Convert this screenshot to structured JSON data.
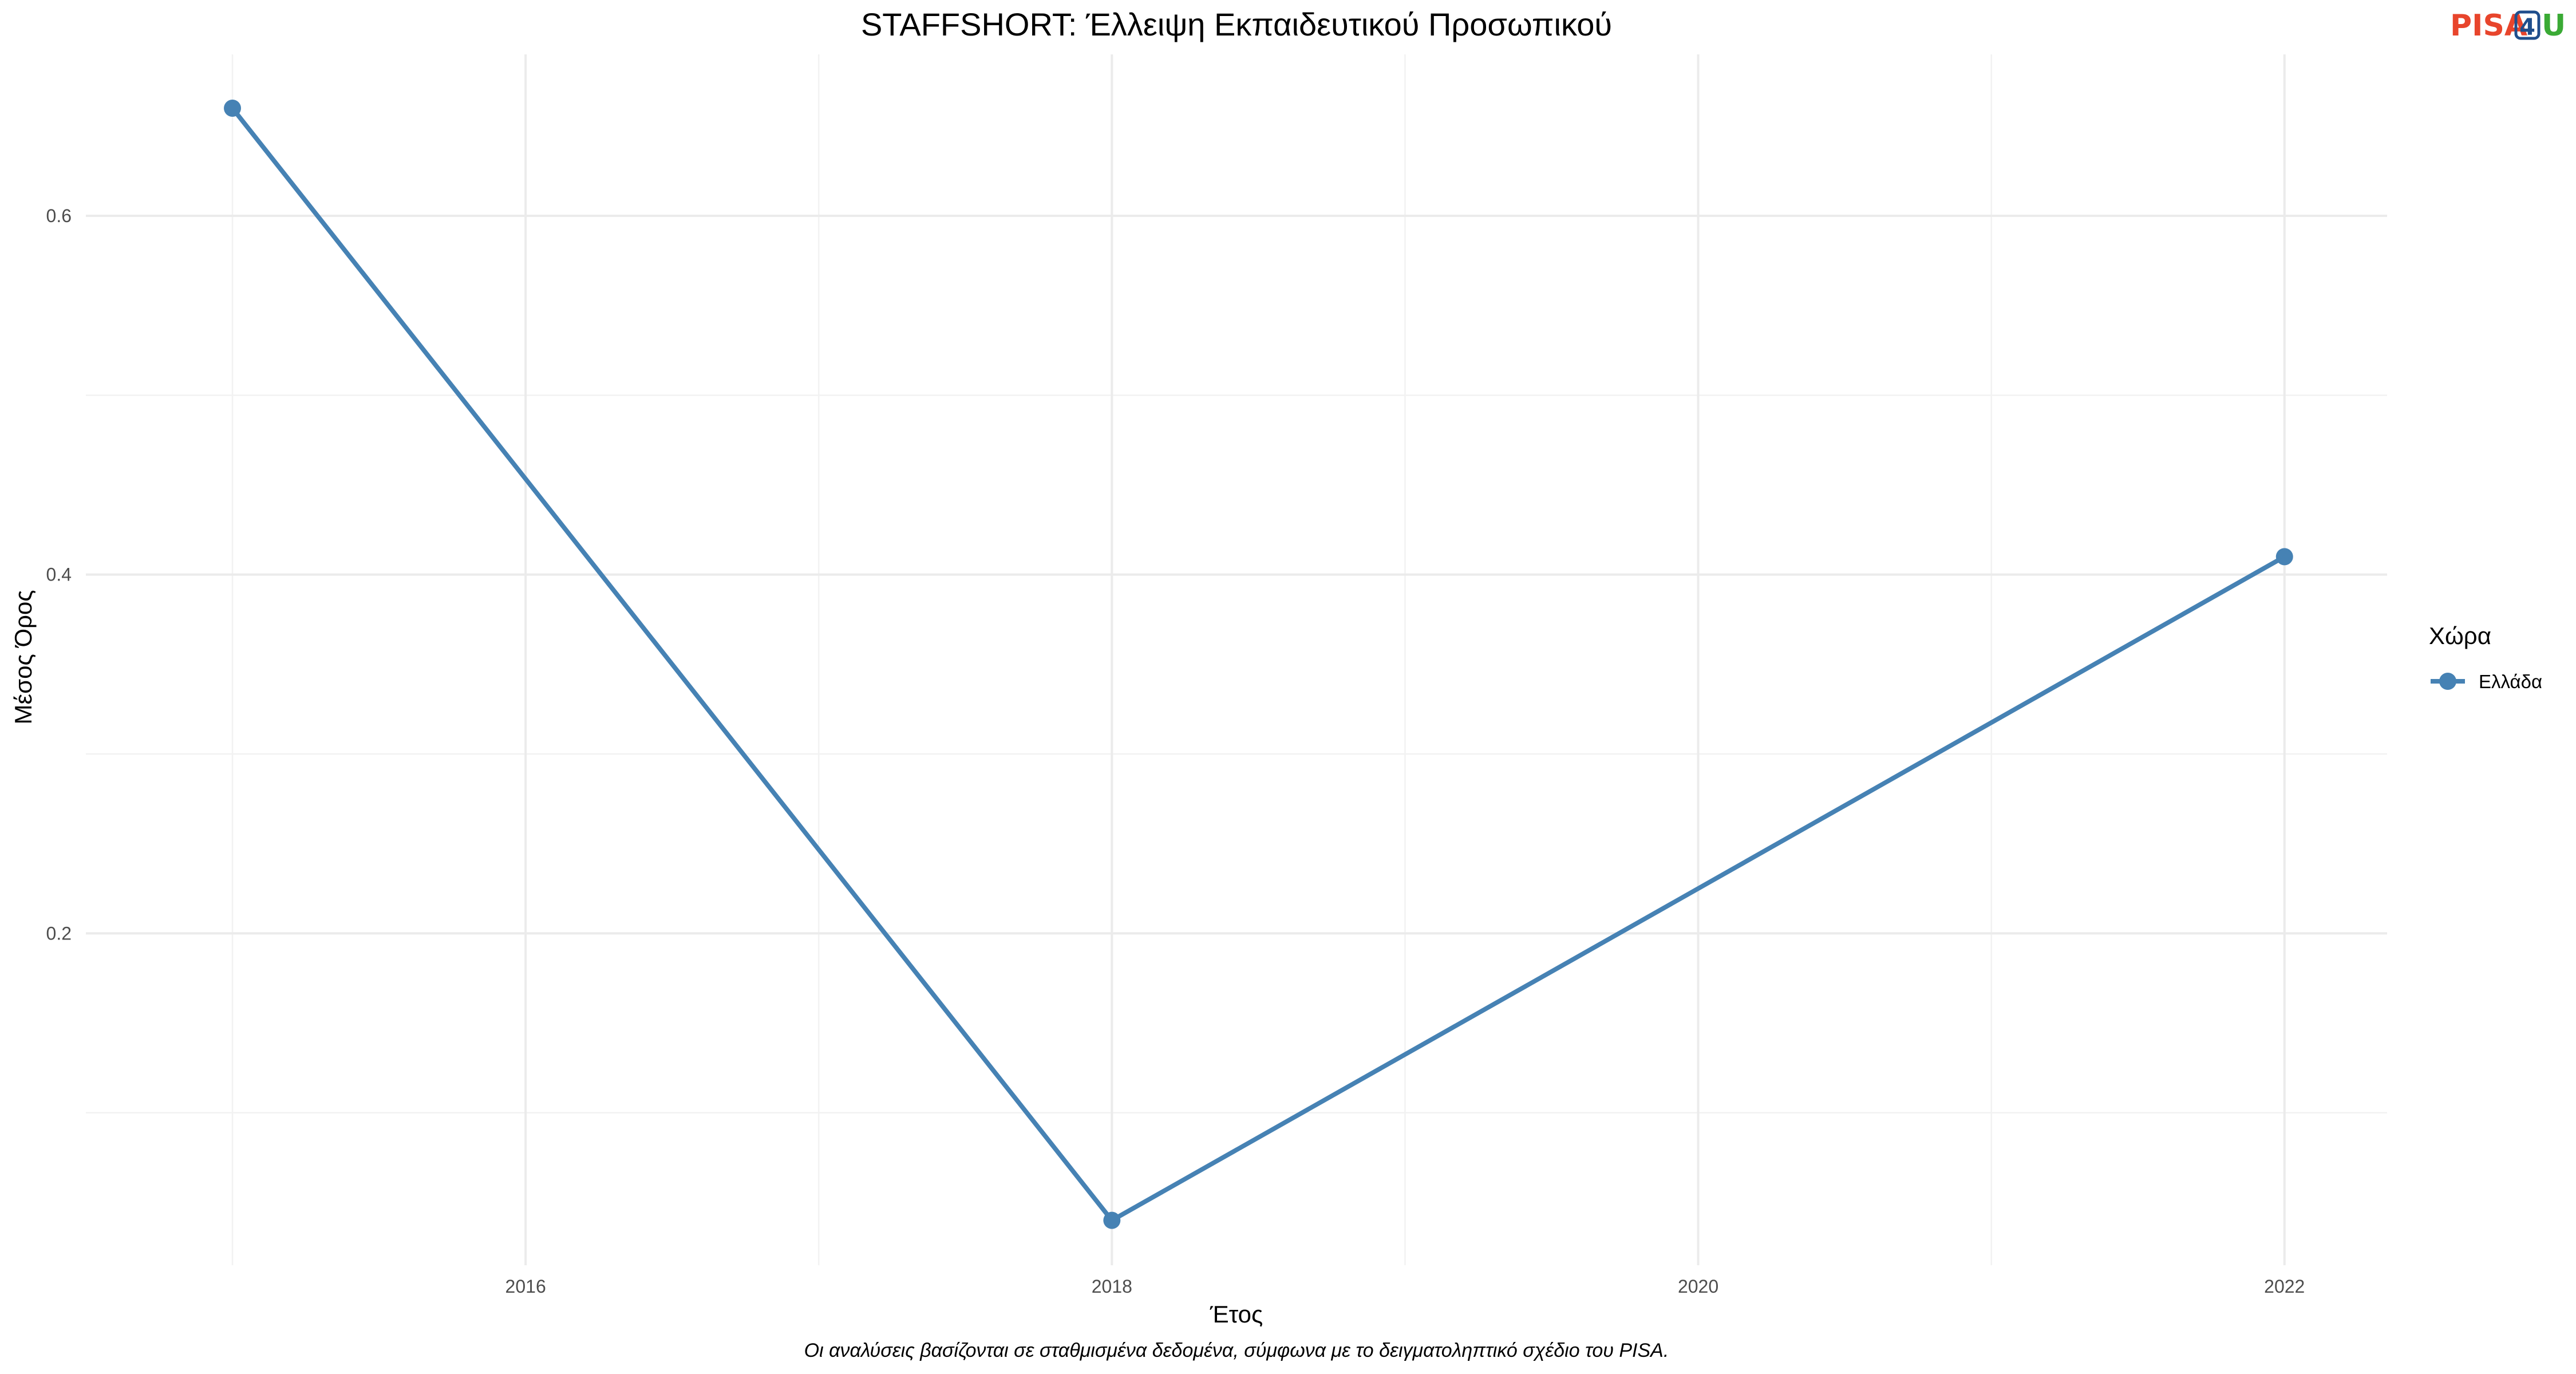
{
  "chart_data": {
    "type": "line",
    "title": "STAFFSHORT: Έλλειψη Εκπαιδευτικού Προσωπικού",
    "xlabel": "Έτος",
    "ylabel": "Μέσος Όρος",
    "xlim": [
      2014.5,
      2022.35
    ],
    "ylim": [
      0.015,
      0.69
    ],
    "x_ticks": [
      2016,
      2018,
      2020,
      2022
    ],
    "x_tick_labels": [
      "2016",
      "2018",
      "2020",
      "2022"
    ],
    "y_ticks": [
      0.2,
      0.4,
      0.6
    ],
    "y_tick_labels": [
      "0.2",
      "0.4",
      "0.6"
    ],
    "grid": true,
    "legend": {
      "title": "Χώρα",
      "position": "right"
    },
    "series": [
      {
        "name": "Ελλάδα",
        "color": "#4682B4",
        "x": [
          2015,
          2018,
          2022
        ],
        "y": [
          0.66,
          0.04,
          0.41
        ]
      }
    ]
  },
  "caption": "Οι αναλύσεις βασίζονται σε σταθμισμένα δεδομένα, σύμφωνα με το δειγματοληπτικό σχέδιο του PISA.",
  "logo": {
    "part1": "PISA",
    "part2": "4",
    "part3": "U",
    "color1": "#e8452c",
    "color2": "#1f4e8c",
    "color3": "#3aaa35"
  }
}
